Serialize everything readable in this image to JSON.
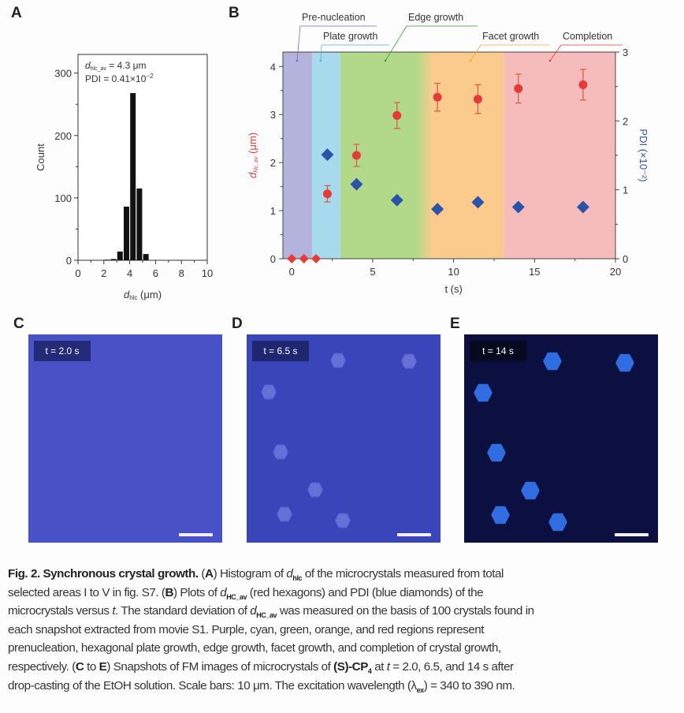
{
  "panels": {
    "a": "A",
    "b": "B",
    "c": "C",
    "d": "D",
    "e": "E"
  },
  "chart_data": [
    {
      "type": "bar",
      "panel": "A",
      "xlabel": "d",
      "xlabel_sub": "hlc",
      "xlabel_unit": " (μm)",
      "ylabel": "Count",
      "xlim": [
        0,
        10
      ],
      "ylim": [
        0,
        330
      ],
      "xticks": [
        "0",
        "2",
        "4",
        "6",
        "8",
        "10"
      ],
      "yticks": [
        "0",
        "100",
        "200",
        "300"
      ],
      "bin_width": 0.5,
      "bin_starts": [
        2.0,
        2.5,
        3.0,
        3.5,
        4.0,
        4.5,
        5.0
      ],
      "counts": [
        1,
        2,
        14,
        86,
        268,
        115,
        10
      ],
      "annotation": {
        "line1_pre": "d",
        "line1_sub": "hlc_av",
        "line1_post": " = 4.3 μm",
        "line2_pre": "PDI = 0.41×10",
        "line2_sup": "−2"
      },
      "bar_color": "#111111"
    },
    {
      "type": "scatter",
      "panel": "B",
      "xlabel": "t (s)",
      "ylabel_left": "d",
      "ylabel_left_sub": "hlc_av",
      "ylabel_left_unit": " (μm)",
      "ylabel_right": "PDI (×10⁻²)",
      "xlim": [
        -0.55,
        20
      ],
      "ylim_left": [
        0,
        4.3
      ],
      "ylim_right": [
        0,
        3
      ],
      "xticks": [
        "0",
        "5",
        "10",
        "15",
        "20"
      ],
      "yticks_left": [
        "0",
        "1",
        "2",
        "3",
        "4"
      ],
      "yticks_right": [
        "0",
        "1",
        "2",
        "3"
      ],
      "regions": [
        {
          "name": "Pre-nucleation",
          "from": -0.55,
          "to": 1.25,
          "color": "#b3b3dc"
        },
        {
          "name": "Plate growth",
          "from": 1.25,
          "to": 3.0,
          "color": "#a8daee"
        },
        {
          "name": "Edge growth",
          "from": 3.0,
          "to": 8.2,
          "color": "#b2d98a"
        },
        {
          "name": "Facet growth",
          "from": 8.2,
          "to": 13.1,
          "color": "#fbcb8e"
        },
        {
          "name": "Completion",
          "from": 13.1,
          "to": 20,
          "color": "#f6bcbc"
        }
      ],
      "series": [
        {
          "axis": "left",
          "color": "#e8393a",
          "marker": "circle",
          "x": [
            0,
            0.75,
            1.5,
            2.2,
            4.0,
            6.5,
            9.0,
            11.5,
            14.0,
            18.0
          ],
          "y": [
            0,
            0,
            0,
            1.35,
            2.15,
            2.98,
            3.36,
            3.32,
            3.54,
            3.62
          ],
          "err": [
            0,
            0,
            0,
            0.17,
            0.23,
            0.27,
            0.29,
            0.3,
            0.3,
            0.32
          ]
        },
        {
          "axis": "right",
          "color": "#2b53a8",
          "marker": "diamond",
          "x": [
            2.2,
            4.0,
            6.5,
            9.0,
            11.5,
            14.0,
            18.0
          ],
          "y": [
            1.51,
            1.08,
            0.85,
            0.72,
            0.82,
            0.75,
            0.75
          ]
        }
      ]
    }
  ],
  "photos": [
    {
      "label": "t = 2.0 s",
      "bg": "#4852c6"
    },
    {
      "label": "t = 6.5 s",
      "bg": "#3a45b9"
    },
    {
      "label": "t = 14 s",
      "bg": "#0b1040"
    }
  ],
  "caption": [
    [
      {
        "t": "Fig. 2. Synchronous crystal growth.",
        "s": "b"
      },
      {
        "t": " ("
      },
      {
        "t": "A",
        "s": "b"
      },
      {
        "t": ") Histogram of "
      },
      {
        "t": "d",
        "s": "i"
      },
      {
        "t": "hlc",
        "s": "sub"
      },
      {
        "t": " of the microcrystals measured from total"
      }
    ],
    [
      {
        "t": "selected areas I to V in fig. S7. ("
      },
      {
        "t": "B",
        "s": "b"
      },
      {
        "t": ") Plots of "
      },
      {
        "t": "d",
        "s": "i"
      },
      {
        "t": "HC_av",
        "s": "sub"
      },
      {
        "t": " (red hexagons) and PDI (blue diamonds) of the"
      }
    ],
    [
      {
        "t": "microcrystals versus "
      },
      {
        "t": "t",
        "s": "i"
      },
      {
        "t": ". The standard deviation of "
      },
      {
        "t": "d",
        "s": "i"
      },
      {
        "t": "HC_av",
        "s": "sub"
      },
      {
        "t": " was measured on the basis of 100 crystals found in"
      }
    ],
    [
      {
        "t": "each snapshot extracted from movie S1. Purple, cyan, green, orange, and red regions represent"
      }
    ],
    [
      {
        "t": "prenucleation, hexagonal plate growth, edge growth, facet growth, and completion of crystal growth,"
      }
    ],
    [
      {
        "t": "respectively. ("
      },
      {
        "t": "C",
        "s": "b"
      },
      {
        "t": " to "
      },
      {
        "t": "E",
        "s": "b"
      },
      {
        "t": ") Snapshots of FM images of microcrystals of "
      },
      {
        "t": "(S)-CP",
        "s": "b"
      },
      {
        "t": "4",
        "s": "sub b"
      },
      {
        "t": " at "
      },
      {
        "t": "t",
        "s": "i"
      },
      {
        "t": " = 2.0, 6.5, and 14 s after"
      }
    ],
    [
      {
        "t": "drop-casting of the EtOH solution. Scale bars: 10 μm. The excitation wavelength (λ"
      },
      {
        "t": "ex",
        "s": "sub"
      },
      {
        "t": ") = 340 to 390 nm."
      }
    ]
  ]
}
